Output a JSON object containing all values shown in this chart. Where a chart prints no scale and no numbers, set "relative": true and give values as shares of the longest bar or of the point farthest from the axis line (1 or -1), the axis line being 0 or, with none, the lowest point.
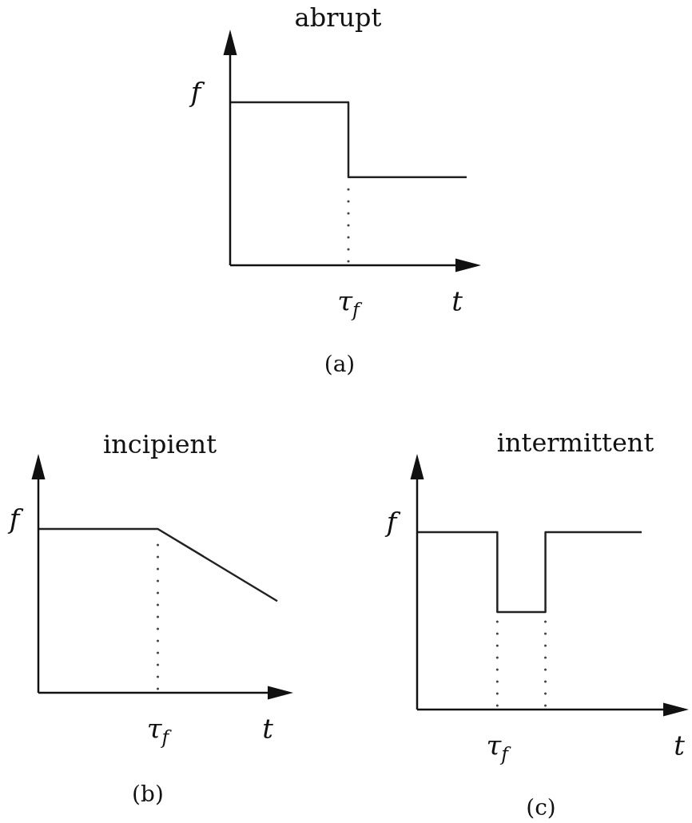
{
  "chart_data": [
    {
      "type": "step",
      "title": "abrupt",
      "xlabel": "t",
      "ylabel": "f",
      "categories": [
        null,
        null,
        null
      ],
      "relative": true,
      "values": [
        1,
        0.54,
        0.54
      ],
      "color": "#222222",
      "annotations": [
        "τ$_{f}$",
        "(a)"
      ]
    },
    {
      "type": "line",
      "title": "incipient",
      "xlabel": "t",
      "ylabel": "f",
      "categories": [
        null,
        null,
        null
      ],
      "relative": true,
      "values": [
        1,
        1,
        0.56
      ],
      "color": "#222222",
      "annotations": [
        "τ$_{f}$",
        "(b)"
      ]
    },
    {
      "type": "step",
      "title": "intermittent",
      "xlabel": "t",
      "ylabel": "f",
      "categories": [
        null,
        null,
        null,
        null,
        null,
        null,
        null,
        null,
        null,
        null,
        null,
        null,
        null,
        null,
        null
      ],
      "relative": true,
      "values": [
        1,
        1,
        1,
        1,
        1,
        0.55,
        0.55,
        0.55,
        1,
        1,
        1,
        1,
        1,
        1,
        1
      ],
      "color": "#222222",
      "annotations": [
        "τ$_{f}$",
        "(c)"
      ]
    }
  ]
}
